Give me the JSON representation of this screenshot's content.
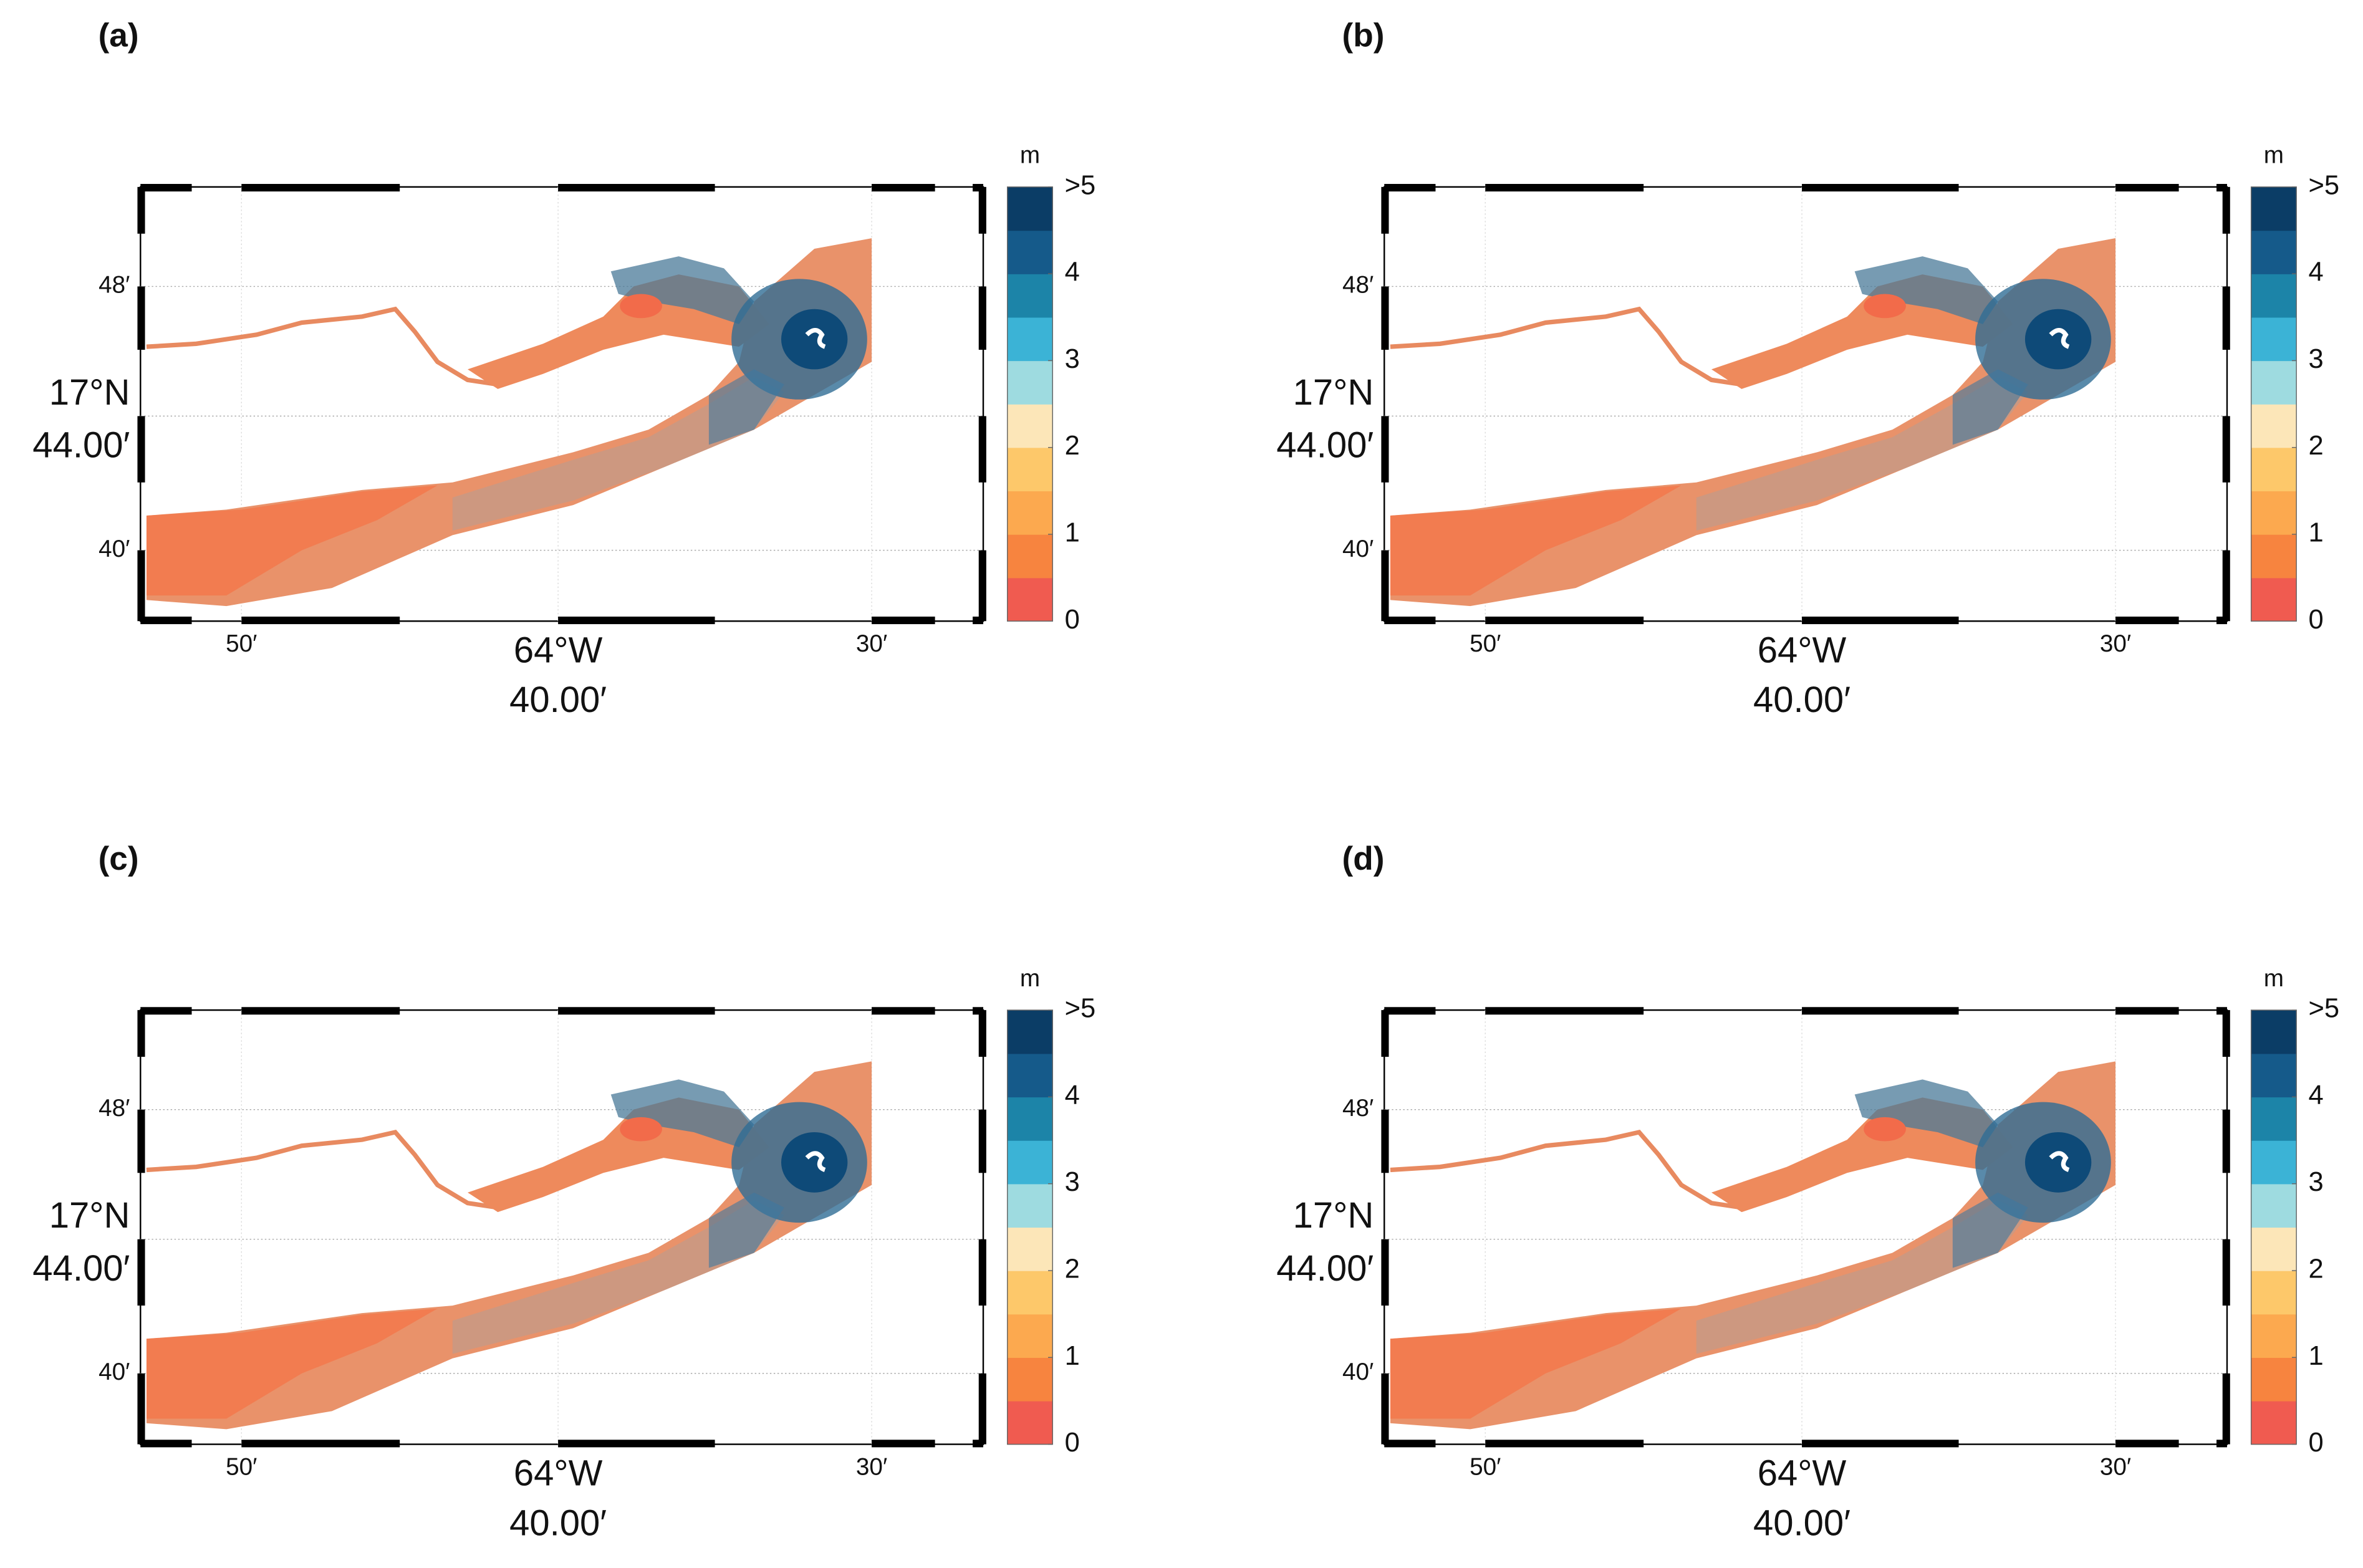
{
  "panels": [
    {
      "label": "(a)"
    },
    {
      "label": "(b)"
    },
    {
      "label": "(c)"
    },
    {
      "label": "(d)"
    }
  ],
  "latitude_labels": [
    "48′",
    "17°N",
    "44.00′",
    "40′"
  ],
  "longitude_labels": [
    "50′",
    "64°W",
    "40.00′",
    "30′"
  ],
  "colorbar": {
    "unit": "m",
    "lim": [
      0,
      5
    ],
    "ticks": [
      0,
      1,
      2,
      3,
      4,
      {
        "value": 5,
        "label": ">5"
      }
    ],
    "colors": [
      "#f05b50",
      "#f7843f",
      "#fca94f",
      "#fdc86a",
      "#fce6b8",
      "#9edbe0",
      "#3bb3d6",
      "#1c84a8",
      "#155a8a",
      "#0b3d66"
    ]
  }
}
